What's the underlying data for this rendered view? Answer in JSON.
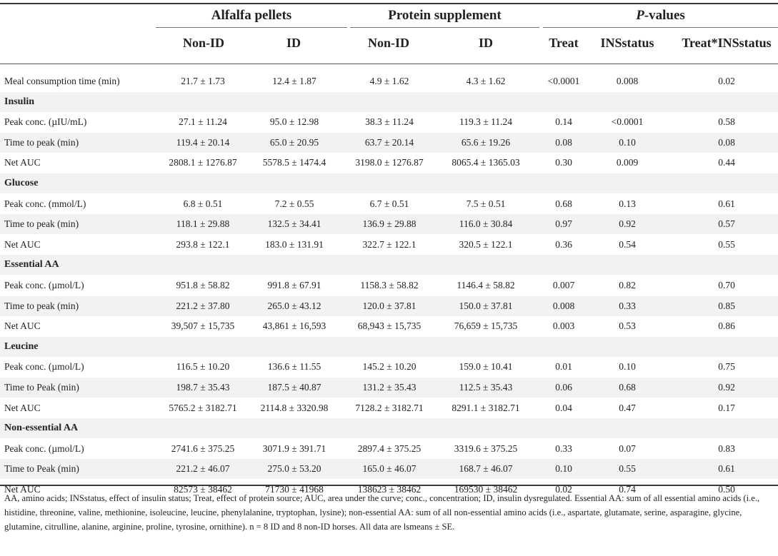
{
  "header": {
    "groups": [
      {
        "label": "Alfalfa pellets"
      },
      {
        "label": "Protein supplement"
      },
      {
        "label": "P-values"
      }
    ],
    "columns": [
      "Non-ID",
      "ID",
      "Non-ID",
      "ID",
      "Treat",
      "INSstatus",
      "Treat*INSstatus"
    ]
  },
  "rows": [
    {
      "label": "Meal consumption time (min)",
      "cells": [
        "21.7 ± 1.73",
        "12.4 ± 1.87",
        "4.9 ± 1.62",
        "4.3 ± 1.62",
        "<0.0001",
        "0.008",
        "0.02"
      ]
    },
    {
      "label": "Insulin",
      "section": true
    },
    {
      "label": "Peak conc. (µIU/mL)",
      "cells": [
        "27.1 ± 11.24",
        "95.0 ± 12.98",
        "38.3 ± 11.24",
        "119.3 ± 11.24",
        "0.14",
        "<0.0001",
        "0.58"
      ]
    },
    {
      "label": "Time to peak (min)",
      "cells": [
        "119.4 ± 20.14",
        "65.0 ± 20.95",
        "63.7 ± 20.14",
        "65.6 ± 19.26",
        "0.08",
        "0.10",
        "0.08"
      ]
    },
    {
      "label": "Net AUC",
      "cells": [
        "2808.1 ± 1276.87",
        "5578.5 ± 1474.4",
        "3198.0 ± 1276.87",
        "8065.4 ± 1365.03",
        "0.30",
        "0.009",
        "0.44"
      ]
    },
    {
      "label": "Glucose",
      "section": true
    },
    {
      "label": "Peak conc. (mmol/L)",
      "cells": [
        "6.8 ± 0.51",
        "7.2 ± 0.55",
        "6.7 ± 0.51",
        "7.5 ± 0.51",
        "0.68",
        "0.13",
        "0.61"
      ]
    },
    {
      "label": "Time to peak (min)",
      "cells": [
        "118.1 ± 29.88",
        "132.5 ± 34.41",
        "136.9 ± 29.88",
        "116.0 ± 30.84",
        "0.97",
        "0.92",
        "0.57"
      ]
    },
    {
      "label": "Net AUC",
      "cells": [
        "293.8 ± 122.1",
        "183.0 ± 131.91",
        "322.7 ± 122.1",
        "320.5 ± 122.1",
        "0.36",
        "0.54",
        "0.55"
      ]
    },
    {
      "label": "Essential AA",
      "section": true
    },
    {
      "label": "Peak conc. (µmol/L)",
      "cells": [
        "951.8 ± 58.82",
        "991.8 ± 67.91",
        "1158.3 ± 58.82",
        "1146.4 ± 58.82",
        "0.007",
        "0.82",
        "0.70"
      ]
    },
    {
      "label": "Time to peak (min)",
      "cells": [
        "221.2 ± 37.80",
        "265.0 ± 43.12",
        "120.0 ± 37.81",
        "150.0 ± 37.81",
        "0.008",
        "0.33",
        "0.85"
      ]
    },
    {
      "label": "Net AUC",
      "cells": [
        "39,507 ± 15,735",
        "43,861 ± 16,593",
        "68,943 ± 15,735",
        "76,659 ± 15,735",
        "0.003",
        "0.53",
        "0.86"
      ]
    },
    {
      "label": "Leucine",
      "section": true
    },
    {
      "label": "Peak conc. (µmol/L)",
      "cells": [
        "116.5 ± 10.20",
        "136.6 ± 11.55",
        "145.2 ± 10.20",
        "159.0 ± 10.41",
        "0.01",
        "0.10",
        "0.75"
      ]
    },
    {
      "label": "Time to Peak (min)",
      "cells": [
        "198.7 ± 35.43",
        "187.5 ± 40.87",
        "131.2 ± 35.43",
        "112.5 ± 35.43",
        "0.06",
        "0.68",
        "0.92"
      ]
    },
    {
      "label": "Net AUC",
      "cells": [
        "5765.2 ± 3182.71",
        "2114.8 ± 3320.98",
        "7128.2 ± 3182.71",
        "8291.1 ± 3182.71",
        "0.04",
        "0.47",
        "0.17"
      ]
    },
    {
      "label": "Non-essential AA",
      "section": true
    },
    {
      "label": "Peak conc. (µmol/L)",
      "cells": [
        "2741.6 ± 375.25",
        "3071.9 ± 391.71",
        "2897.4 ± 375.25",
        "3319.6 ± 375.25",
        "0.33",
        "0.07",
        "0.83"
      ]
    },
    {
      "label": "Time to Peak (min)",
      "cells": [
        "221.2 ± 46.07",
        "275.0 ± 53.20",
        "165.0 ± 46.07",
        "168.7 ± 46.07",
        "0.10",
        "0.55",
        "0.61"
      ]
    },
    {
      "label": "Net AUC",
      "cells": [
        "82573 ± 38462",
        "71730 ± 41968",
        "138623 ± 38462",
        "169530 ± 38462",
        "0.02",
        "0.74",
        "0.50"
      ]
    }
  ],
  "footnote": "AA, amino acids; INSstatus, effect of insulin status; Treat, effect of protein source; AUC, area under the curve; conc., concentration; ID, insulin dysregulated. Essential AA: sum of all essential amino acids (i.e., histidine, threonine, valine, methionine, isoleucine, leucine, phenylalanine, tryptophan, lysine); non-essential AA: sum of all non-essential amino acids (i.e., aspartate, glutamate, serine, asparagine, glycine, glutamine, citrulline, alanine, arginine, proline, tyrosine, ornithine). n = 8 ID and 8 non-ID horses. All data are lsmeans ± SE."
}
